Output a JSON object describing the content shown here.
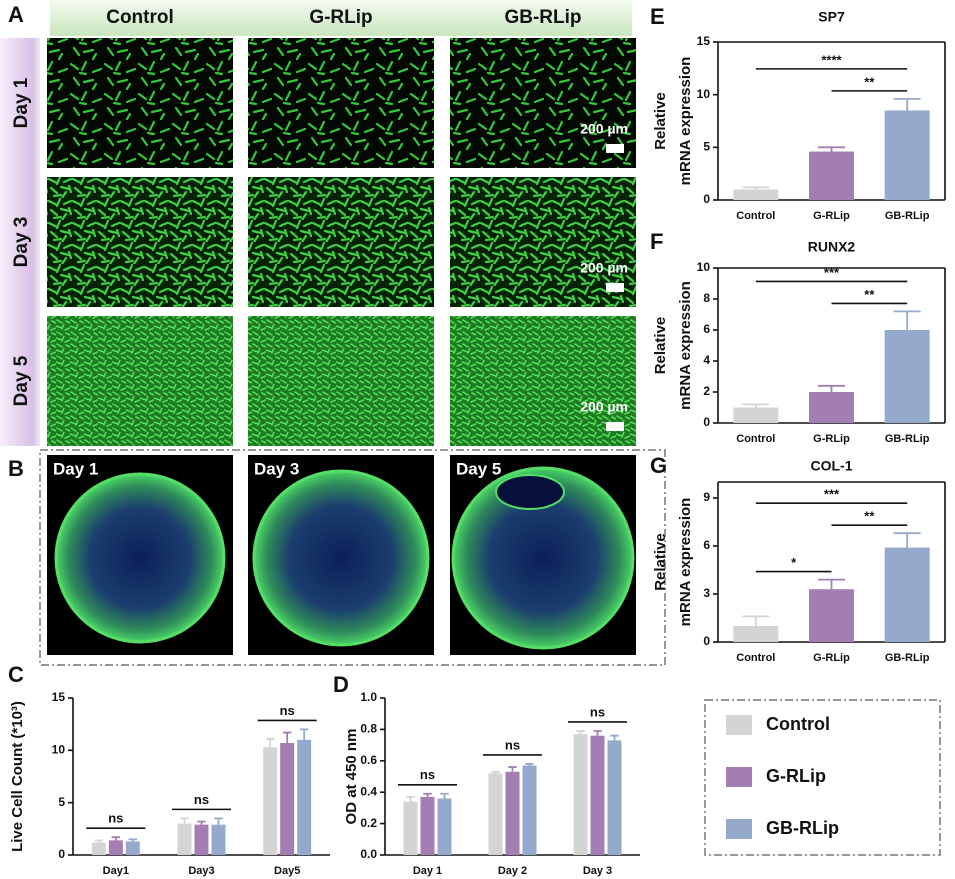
{
  "panels": {
    "A": {
      "letter": "A",
      "columns": [
        "Control",
        "G-RLip",
        "GB-RLip"
      ],
      "rows": [
        "Day 1",
        "Day 3",
        "Day 5"
      ],
      "scale_bar": "200 µm"
    },
    "B": {
      "letter": "B",
      "labels": [
        "Day 1",
        "Day 3",
        "Day 5"
      ]
    }
  },
  "chart_data": [
    {
      "type": "bar",
      "panel": "C",
      "y_label": [
        "Live Cell Count (*10³)"
      ],
      "categories": [
        "Day1",
        "Day3",
        "Day5"
      ],
      "series": [
        {
          "name": "Control",
          "color": "#d4d4d4",
          "values": [
            1.2,
            3.0,
            10.3
          ],
          "errors": [
            0.2,
            0.5,
            0.8
          ]
        },
        {
          "name": "G-RLip",
          "color": "#a47db3",
          "values": [
            1.4,
            2.9,
            10.7
          ],
          "errors": [
            0.3,
            0.3,
            1.0
          ]
        },
        {
          "name": "GB-RLip",
          "color": "#94a9cc",
          "values": [
            1.3,
            2.9,
            11.0
          ],
          "errors": [
            0.2,
            0.6,
            1.0
          ]
        }
      ],
      "annotations": [
        "ns",
        "ns",
        "ns"
      ],
      "ylim": [
        0,
        15
      ],
      "yticks": [
        0,
        5,
        10,
        15
      ]
    },
    {
      "type": "bar",
      "panel": "D",
      "y_label": [
        "OD at 450 nm"
      ],
      "categories": [
        "Day 1",
        "Day 2",
        "Day 3"
      ],
      "series": [
        {
          "name": "Control",
          "color": "#d4d4d4",
          "values": [
            0.34,
            0.52,
            0.77
          ],
          "errors": [
            0.03,
            0.01,
            0.02
          ]
        },
        {
          "name": "G-RLip",
          "color": "#a47db3",
          "values": [
            0.37,
            0.53,
            0.76
          ],
          "errors": [
            0.02,
            0.03,
            0.03
          ]
        },
        {
          "name": "GB-RLip",
          "color": "#94a9cc",
          "values": [
            0.36,
            0.57,
            0.73
          ],
          "errors": [
            0.03,
            0.01,
            0.03
          ]
        }
      ],
      "annotations": [
        "ns",
        "ns",
        "ns"
      ],
      "ylim": [
        0,
        1
      ],
      "yticks": [
        {
          "value": 0,
          "label": "0.0"
        },
        0.2,
        0.4,
        0.6,
        0.8,
        {
          "value": 1,
          "label": "1.0"
        }
      ]
    },
    {
      "type": "bar",
      "panel": "E",
      "title": "SP7",
      "y_label": [
        "Relative",
        "mRNA expression"
      ],
      "categories": [
        "Control",
        "G-RLip",
        "GB-RLip"
      ],
      "colors": [
        "#d4d4d4",
        "#a47db3",
        "#94a9cc"
      ],
      "values": [
        1.0,
        4.6,
        8.5
      ],
      "errors": [
        0.2,
        0.4,
        1.1
      ],
      "annotations": [
        "****",
        "**"
      ],
      "ylim": [
        0,
        15
      ],
      "yticks": [
        0,
        5,
        10,
        15
      ]
    },
    {
      "type": "bar",
      "panel": "F",
      "title": "RUNX2",
      "y_label": [
        "Relative",
        "mRNA expression"
      ],
      "categories": [
        "Control",
        "G-RLip",
        "GB-RLip"
      ],
      "colors": [
        "#d4d4d4",
        "#a47db3",
        "#94a9cc"
      ],
      "values": [
        1.0,
        2.0,
        6.0
      ],
      "errors": [
        0.2,
        0.4,
        1.2
      ],
      "annotations": [
        "***",
        "**"
      ],
      "ylim": [
        0,
        10
      ],
      "yticks": [
        0,
        2,
        4,
        6,
        8,
        10
      ]
    },
    {
      "type": "bar",
      "panel": "G",
      "title": "COL-1",
      "y_label": [
        "Relative",
        "mRNA expression"
      ],
      "categories": [
        "Control",
        "G-RLip",
        "GB-RLip"
      ],
      "colors": [
        "#d4d4d4",
        "#a47db3",
        "#94a9cc"
      ],
      "values": [
        1.0,
        3.3,
        5.9
      ],
      "errors": [
        0.6,
        0.6,
        0.9
      ],
      "annotations": [
        "*",
        "***",
        "**"
      ],
      "ylim": [
        0,
        10
      ],
      "yticks": [
        0,
        3,
        6,
        9
      ]
    }
  ]
}
